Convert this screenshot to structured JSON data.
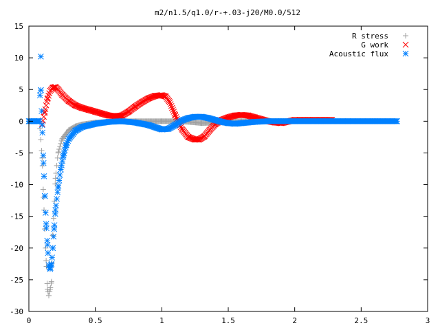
{
  "chart_data": {
    "type": "scatter",
    "title": "m2/n1.5/q1.0/r-+.03-j20/M0.0/512",
    "xlabel": "",
    "ylabel": "",
    "xlim": [
      0,
      3
    ],
    "ylim": [
      -30,
      15
    ],
    "xticks": [
      0,
      0.5,
      1,
      1.5,
      2,
      2.5,
      3
    ],
    "xtick_labels": [
      "0",
      "0.5",
      "1",
      "1.5",
      "2",
      "2.5",
      "3"
    ],
    "yticks": [
      -30,
      -25,
      -20,
      -15,
      -10,
      -5,
      0,
      5,
      10,
      15
    ],
    "ytick_labels": [
      "-30",
      "-25",
      "-20",
      "-15",
      "-10",
      "-5",
      "0",
      "5",
      "10",
      "15"
    ],
    "grid": false,
    "legend_position": "top-right",
    "series": [
      {
        "name": "R stress",
        "marker": "plus",
        "color": "#a0a0a0",
        "x": [
          0,
          0.02,
          0.04,
          0.06,
          0.08,
          0.1,
          0.11,
          0.12,
          0.13,
          0.14,
          0.15,
          0.16,
          0.17,
          0.18,
          0.2,
          0.22,
          0.25,
          0.3,
          0.35,
          0.4,
          0.5,
          0.6,
          0.7,
          0.8,
          0.9,
          1.0,
          1.1,
          1.2,
          1.3,
          1.4,
          1.5,
          1.6,
          1.7,
          1.8,
          1.9,
          2.0
        ],
        "y": [
          0,
          0,
          0,
          0,
          0,
          -5.8,
          -12,
          -17,
          -22,
          -26.5,
          -27.5,
          -26.5,
          -25.3,
          -18,
          -9,
          -5,
          -2.8,
          -1.4,
          -0.8,
          -0.5,
          -0.2,
          -0.1,
          0,
          0,
          0,
          0,
          0,
          -0.1,
          -0.3,
          -0.2,
          0,
          0,
          0,
          0,
          0,
          0
        ]
      },
      {
        "name": "G work",
        "marker": "cross",
        "color": "#ff0000",
        "x": [
          0.1,
          0.12,
          0.14,
          0.16,
          0.18,
          0.2,
          0.22,
          0.25,
          0.3,
          0.35,
          0.4,
          0.45,
          0.5,
          0.55,
          0.6,
          0.65,
          0.7,
          0.75,
          0.8,
          0.85,
          0.9,
          0.95,
          1.0,
          1.03,
          1.06,
          1.1,
          1.15,
          1.2,
          1.25,
          1.28,
          1.32,
          1.36,
          1.4,
          1.45,
          1.5,
          1.55,
          1.6,
          1.65,
          1.7,
          1.75,
          1.8,
          1.85,
          1.9,
          2.0,
          2.1,
          2.2,
          2.28
        ],
        "y": [
          -0.5,
          1.5,
          3.5,
          4.8,
          5.3,
          5.4,
          5.0,
          4.2,
          3.2,
          2.5,
          2.1,
          1.8,
          1.5,
          1.2,
          0.9,
          0.8,
          0.9,
          1.5,
          2.3,
          3.0,
          3.6,
          4.0,
          4.1,
          3.9,
          3.0,
          1.0,
          -1.2,
          -2.5,
          -2.9,
          -2.9,
          -2.4,
          -1.4,
          -0.5,
          0.2,
          0.6,
          0.9,
          1.0,
          0.9,
          0.6,
          0.3,
          0,
          -0.2,
          -0.3,
          0.2,
          0.2,
          0.2,
          0.2
        ]
      },
      {
        "name": "Acoustic flux",
        "marker": "star",
        "color": "#0080ff",
        "x": [
          0,
          0.02,
          0.04,
          0.06,
          0.08,
          0.09,
          0.09,
          0.1,
          0.11,
          0.12,
          0.13,
          0.14,
          0.15,
          0.16,
          0.17,
          0.18,
          0.19,
          0.2,
          0.22,
          0.24,
          0.26,
          0.28,
          0.3,
          0.35,
          0.4,
          0.5,
          0.6,
          0.7,
          0.8,
          0.9,
          1.0,
          1.05,
          1.1,
          1.15,
          1.2,
          1.25,
          1.3,
          1.35,
          1.4,
          1.45,
          1.5,
          1.55,
          1.6,
          1.65,
          1.7,
          1.8,
          1.9,
          2.0,
          2.2,
          2.4,
          2.6,
          2.77
        ],
        "y": [
          0,
          0,
          0,
          0,
          0,
          10.2,
          4.9,
          -0.6,
          -6.6,
          -11.8,
          -16.2,
          -19.5,
          -22.7,
          -23.3,
          -22.5,
          -20,
          -17,
          -14,
          -10.5,
          -7.6,
          -5.4,
          -3.8,
          -2.8,
          -1.5,
          -0.9,
          -0.4,
          -0.1,
          0,
          -0.2,
          -0.6,
          -1.3,
          -1.2,
          -0.6,
          0.1,
          0.5,
          0.7,
          0.7,
          0.5,
          0.2,
          -0.1,
          -0.3,
          -0.4,
          -0.3,
          -0.2,
          -0.1,
          0,
          0,
          0,
          0,
          0,
          0,
          0
        ]
      }
    ]
  }
}
